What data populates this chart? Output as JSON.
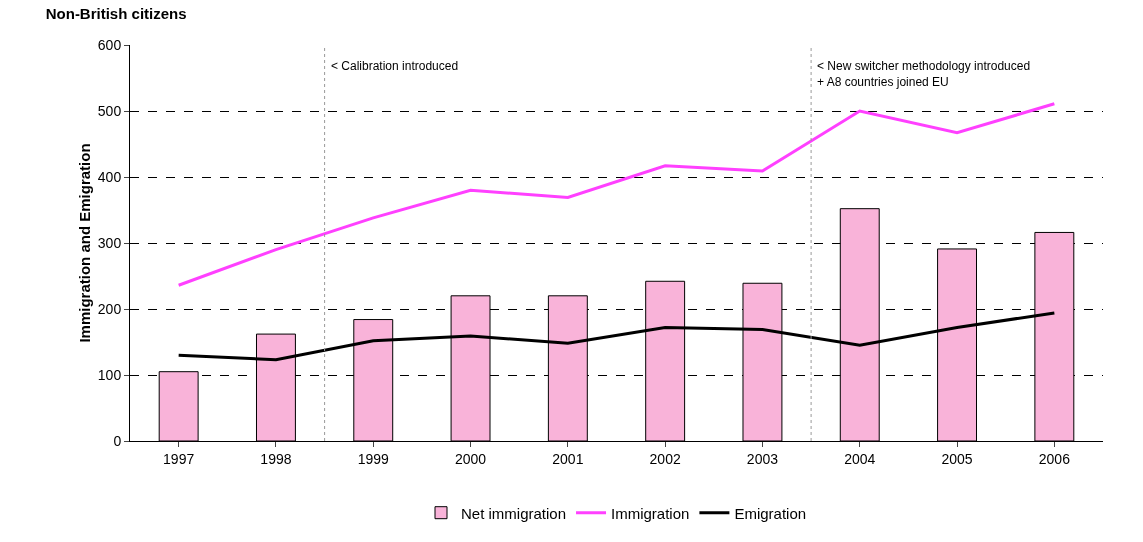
{
  "chart_data": {
    "type": "bar",
    "title": "Non-British citizens",
    "ylabel": "Immigration and Emigration",
    "x": [
      1997,
      1998,
      1999,
      2000,
      2001,
      2002,
      2003,
      2004,
      2005,
      2006
    ],
    "xlim": [
      1996.5,
      2006.5
    ],
    "xticks": [
      1997,
      1998,
      1999,
      2000,
      2001,
      2002,
      2003,
      2004,
      2005,
      2006
    ],
    "ylim": [
      0,
      600
    ],
    "yticks": [
      0,
      100,
      200,
      300,
      400,
      500,
      600
    ],
    "grid": "y",
    "legend": "bottom",
    "series": [
      {
        "name": "Net immigration",
        "color": "#f9b3d9",
        "values": [
          105,
          162,
          184,
          220,
          220,
          242,
          239,
          352,
          291,
          316
        ]
      },
      {
        "name": "Immigration",
        "type": "line",
        "color": "#ff40ff",
        "values": [
          236,
          290,
          338,
          380,
          369,
          417,
          409,
          500,
          467,
          511
        ]
      },
      {
        "name": "Emigration",
        "type": "line",
        "color": "#000000",
        "values": [
          130,
          123,
          152,
          159,
          148,
          172,
          169,
          145,
          172,
          194
        ]
      }
    ],
    "ref_lines": [
      {
        "axis": "x",
        "value": 1998.5,
        "label": "< Calibration introduced",
        "color": "#999999",
        "line_style": "dotted"
      },
      {
        "axis": "x",
        "value": 2003.5,
        "label": "< New switcher methodology introduced\n+ A8 countries joined EU",
        "color": "#999999",
        "line_style": "dotted"
      }
    ]
  }
}
